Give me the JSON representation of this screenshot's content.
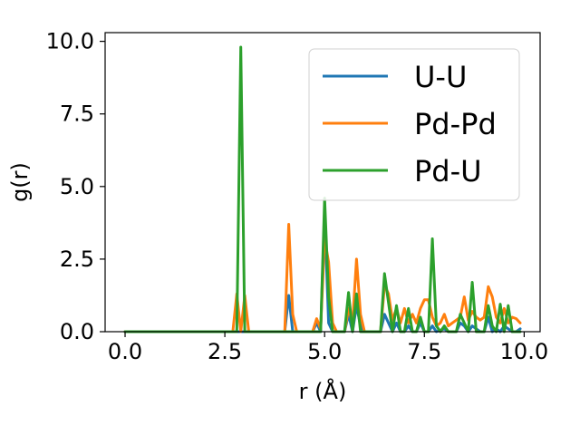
{
  "chart_data": {
    "type": "line",
    "xlabel": "r (Å)",
    "ylabel": "g(r)",
    "xlim": [
      -0.5,
      10.4
    ],
    "ylim": [
      0.0,
      10.3
    ],
    "xticks": [
      "0.0",
      "2.5",
      "5.0",
      "7.5",
      "10.0"
    ],
    "yticks": [
      "0.0",
      "2.5",
      "5.0",
      "7.5",
      "10.0"
    ],
    "grid": false,
    "legend_position": "top-right",
    "series": [
      {
        "name": "U-U",
        "color": "#1f77b4",
        "points": [
          [
            0.0,
            0
          ],
          [
            2.7,
            0
          ],
          [
            2.8,
            0
          ],
          [
            2.9,
            0
          ],
          [
            3.0,
            0
          ],
          [
            3.1,
            0
          ],
          [
            3.9,
            0
          ],
          [
            4.0,
            0
          ],
          [
            4.1,
            1.25
          ],
          [
            4.2,
            0
          ],
          [
            4.3,
            0
          ],
          [
            4.7,
            0
          ],
          [
            4.8,
            0.3
          ],
          [
            4.9,
            0
          ],
          [
            5.0,
            4.1
          ],
          [
            5.1,
            0.3
          ],
          [
            5.2,
            0
          ],
          [
            5.5,
            0
          ],
          [
            5.6,
            0.6
          ],
          [
            5.7,
            0
          ],
          [
            5.8,
            0.9
          ],
          [
            5.9,
            0.2
          ],
          [
            6.0,
            0
          ],
          [
            6.4,
            0
          ],
          [
            6.5,
            0.6
          ],
          [
            6.6,
            0.3
          ],
          [
            6.7,
            0
          ],
          [
            6.8,
            0.3
          ],
          [
            6.9,
            0
          ],
          [
            7.0,
            0
          ],
          [
            7.1,
            0.2
          ],
          [
            7.2,
            0
          ],
          [
            7.3,
            0
          ],
          [
            7.4,
            0.3
          ],
          [
            7.5,
            0
          ],
          [
            7.6,
            0
          ],
          [
            7.7,
            0.2
          ],
          [
            7.8,
            0
          ],
          [
            8.0,
            0.1
          ],
          [
            8.1,
            0
          ],
          [
            8.3,
            0
          ],
          [
            8.4,
            0.3
          ],
          [
            8.5,
            0.2
          ],
          [
            8.6,
            0
          ],
          [
            8.7,
            0.2
          ],
          [
            8.8,
            0.1
          ],
          [
            8.9,
            0
          ],
          [
            9.0,
            0
          ],
          [
            9.1,
            0.5
          ],
          [
            9.2,
            0
          ],
          [
            9.3,
            0.1
          ],
          [
            9.4,
            0
          ],
          [
            9.5,
            0.2
          ],
          [
            9.6,
            0.1
          ],
          [
            9.7,
            0
          ],
          [
            9.8,
            0
          ],
          [
            9.9,
            0.1
          ]
        ]
      },
      {
        "name": "Pd-Pd",
        "color": "#ff7f0e",
        "points": [
          [
            0.0,
            0
          ],
          [
            2.7,
            0
          ],
          [
            2.8,
            1.3
          ],
          [
            2.9,
            0
          ],
          [
            3.0,
            1.25
          ],
          [
            3.1,
            0
          ],
          [
            3.9,
            0
          ],
          [
            4.0,
            0
          ],
          [
            4.1,
            3.7
          ],
          [
            4.2,
            0.6
          ],
          [
            4.3,
            0
          ],
          [
            4.7,
            0
          ],
          [
            4.8,
            0.45
          ],
          [
            4.9,
            0.1
          ],
          [
            5.0,
            3.2
          ],
          [
            5.1,
            2.4
          ],
          [
            5.2,
            0.3
          ],
          [
            5.3,
            0
          ],
          [
            5.5,
            0
          ],
          [
            5.6,
            0.8
          ],
          [
            5.7,
            0.3
          ],
          [
            5.8,
            2.5
          ],
          [
            5.9,
            0.6
          ],
          [
            6.0,
            0
          ],
          [
            6.4,
            0
          ],
          [
            6.5,
            1.6
          ],
          [
            6.6,
            1.3
          ],
          [
            6.7,
            0.4
          ],
          [
            6.8,
            0.8
          ],
          [
            6.9,
            0.3
          ],
          [
            7.0,
            0.8
          ],
          [
            7.1,
            0.3
          ],
          [
            7.2,
            0.6
          ],
          [
            7.3,
            0.3
          ],
          [
            7.4,
            0.8
          ],
          [
            7.5,
            1.1
          ],
          [
            7.6,
            1.1
          ],
          [
            7.7,
            0.5
          ],
          [
            7.8,
            0.2
          ],
          [
            7.9,
            0.3
          ],
          [
            8.0,
            0.6
          ],
          [
            8.1,
            0.2
          ],
          [
            8.2,
            0.3
          ],
          [
            8.3,
            0.4
          ],
          [
            8.4,
            0.5
          ],
          [
            8.5,
            1.2
          ],
          [
            8.6,
            0.4
          ],
          [
            8.7,
            0.7
          ],
          [
            8.8,
            0.5
          ],
          [
            8.9,
            0.4
          ],
          [
            9.0,
            0.5
          ],
          [
            9.1,
            1.55
          ],
          [
            9.2,
            1.2
          ],
          [
            9.3,
            0.5
          ],
          [
            9.4,
            0.3
          ],
          [
            9.5,
            0.8
          ],
          [
            9.6,
            0.3
          ],
          [
            9.7,
            0.5
          ],
          [
            9.8,
            0.45
          ],
          [
            9.9,
            0.3
          ]
        ]
      },
      {
        "name": "Pd-U",
        "color": "#2ca02c",
        "points": [
          [
            0.0,
            0
          ],
          [
            2.7,
            0
          ],
          [
            2.8,
            0
          ],
          [
            2.9,
            9.8
          ],
          [
            3.0,
            0
          ],
          [
            3.1,
            0
          ],
          [
            3.9,
            0
          ],
          [
            4.0,
            0
          ],
          [
            4.1,
            0
          ],
          [
            4.2,
            0
          ],
          [
            4.7,
            0
          ],
          [
            4.8,
            0
          ],
          [
            4.9,
            0
          ],
          [
            5.0,
            4.6
          ],
          [
            5.1,
            1.2
          ],
          [
            5.2,
            0
          ],
          [
            5.3,
            0
          ],
          [
            5.5,
            0
          ],
          [
            5.6,
            1.35
          ],
          [
            5.7,
            0
          ],
          [
            5.8,
            1.3
          ],
          [
            5.9,
            0
          ],
          [
            6.0,
            0
          ],
          [
            6.4,
            0
          ],
          [
            6.5,
            2.0
          ],
          [
            6.6,
            1.0
          ],
          [
            6.7,
            0
          ],
          [
            6.8,
            0.9
          ],
          [
            6.9,
            0
          ],
          [
            7.0,
            0
          ],
          [
            7.1,
            0.8
          ],
          [
            7.2,
            0
          ],
          [
            7.3,
            0
          ],
          [
            7.4,
            0.5
          ],
          [
            7.5,
            0
          ],
          [
            7.6,
            0
          ],
          [
            7.7,
            3.2
          ],
          [
            7.8,
            0.2
          ],
          [
            7.9,
            0
          ],
          [
            8.0,
            0.2
          ],
          [
            8.1,
            0
          ],
          [
            8.2,
            0
          ],
          [
            8.3,
            0
          ],
          [
            8.4,
            0.6
          ],
          [
            8.5,
            0.3
          ],
          [
            8.6,
            0
          ],
          [
            8.7,
            1.7
          ],
          [
            8.8,
            0
          ],
          [
            8.9,
            0
          ],
          [
            9.0,
            0
          ],
          [
            9.1,
            0.9
          ],
          [
            9.2,
            0.2
          ],
          [
            9.3,
            0
          ],
          [
            9.4,
            0.95
          ],
          [
            9.5,
            0
          ],
          [
            9.6,
            0.9
          ],
          [
            9.7,
            0
          ],
          [
            9.8,
            0
          ],
          [
            9.9,
            0
          ]
        ]
      }
    ]
  }
}
